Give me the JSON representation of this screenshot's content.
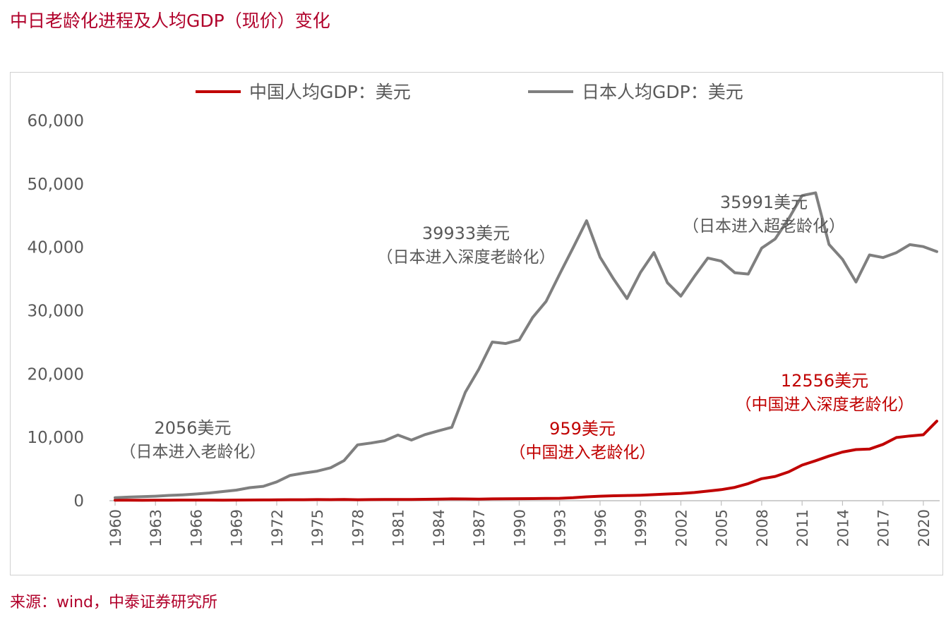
{
  "title": "中日老龄化进程及人均GDP（现价）变化",
  "source": "来源：wind，中泰证券研究所",
  "colors": {
    "china": "#c00000",
    "japan": "#7f7f7f",
    "title": "#b0002a",
    "axis": "#595959"
  },
  "chart_data": {
    "type": "line",
    "title": "",
    "xlabel": "",
    "ylabel": "",
    "ylim": [
      0,
      60000
    ],
    "yticks": [
      0,
      10000,
      20000,
      30000,
      40000,
      50000,
      60000
    ],
    "ytick_labels": [
      "0",
      "10,000",
      "20,000",
      "30,000",
      "40,000",
      "50,000",
      "60,000"
    ],
    "xtick_labels": [
      "1960",
      "1963",
      "1966",
      "1969",
      "1972",
      "1975",
      "1978",
      "1981",
      "1984",
      "1987",
      "1990",
      "1993",
      "1996",
      "1999",
      "2002",
      "2005",
      "2008",
      "2011",
      "2014",
      "2017",
      "2020"
    ],
    "legend_position": "top",
    "grid": false,
    "x": [
      1960,
      1961,
      1962,
      1963,
      1964,
      1965,
      1966,
      1967,
      1968,
      1969,
      1970,
      1971,
      1972,
      1973,
      1974,
      1975,
      1976,
      1977,
      1978,
      1979,
      1980,
      1981,
      1982,
      1983,
      1984,
      1985,
      1986,
      1987,
      1988,
      1989,
      1990,
      1991,
      1992,
      1993,
      1994,
      1995,
      1996,
      1997,
      1998,
      1999,
      2000,
      2001,
      2002,
      2003,
      2004,
      2005,
      2006,
      2007,
      2008,
      2009,
      2010,
      2011,
      2012,
      2013,
      2014,
      2015,
      2016,
      2017,
      2018,
      2019,
      2020,
      2021
    ],
    "series": [
      {
        "name": "中国人均GDP：美元",
        "color": "#c00000",
        "values": [
          90,
          76,
          70,
          74,
          85,
          98,
          104,
          97,
          91,
          100,
          113,
          119,
          132,
          157,
          160,
          178,
          165,
          185,
          156,
          183,
          195,
          197,
          203,
          225,
          250,
          294,
          281,
          252,
          284,
          311,
          318,
          333,
          366,
          377,
          473,
          610,
          709,
          782,
          829,
          873,
          959,
          1053,
          1149,
          1289,
          1509,
          1753,
          2099,
          2694,
          3468,
          3832,
          4550,
          5618,
          6317,
          7051,
          7679,
          8067,
          8148,
          8879,
          9977,
          10216,
          10409,
          12556
        ]
      },
      {
        "name": "日本人均GDP：美元",
        "color": "#7f7f7f",
        "values": [
          479,
          563,
          633,
          717,
          836,
          919,
          1058,
          1228,
          1451,
          1669,
          2056,
          2272,
          2967,
          3998,
          4354,
          4659,
          5198,
          6335,
          8821,
          9105,
          9465,
          10361,
          9578,
          10425,
          11035,
          11584,
          17112,
          20745,
          25051,
          24813,
          25371,
          28925,
          31465,
          35766,
          39933,
          44198,
          38437,
          35022,
          31903,
          36027,
          39169,
          34406,
          32289,
          35387,
          38299,
          37813,
          35991,
          35779,
          39876,
          41309,
          44508,
          48168,
          48603,
          40454,
          38109,
          34524,
          38794,
          38387,
          39159,
          40416,
          40113,
          39313
        ]
      }
    ],
    "annotations": [
      {
        "text": "2056美元",
        "sub": "（日本进入老龄化）",
        "series": "日本人均GDP：美元",
        "year": 1970
      },
      {
        "text": "39933美元",
        "sub": "（日本进入深度老龄化）",
        "series": "日本人均GDP：美元",
        "year": 1994
      },
      {
        "text": "35991美元",
        "sub": "（日本进入超老龄化）",
        "series": "日本人均GDP：美元",
        "year": 2006
      },
      {
        "text": "959美元",
        "sub": "（中国进入老龄化）",
        "series": "中国人均GDP：美元",
        "year": 2000
      },
      {
        "text": "12556美元",
        "sub": "（中国进入深度老龄化）",
        "series": "中国人均GDP：美元",
        "year": 2021
      }
    ]
  }
}
